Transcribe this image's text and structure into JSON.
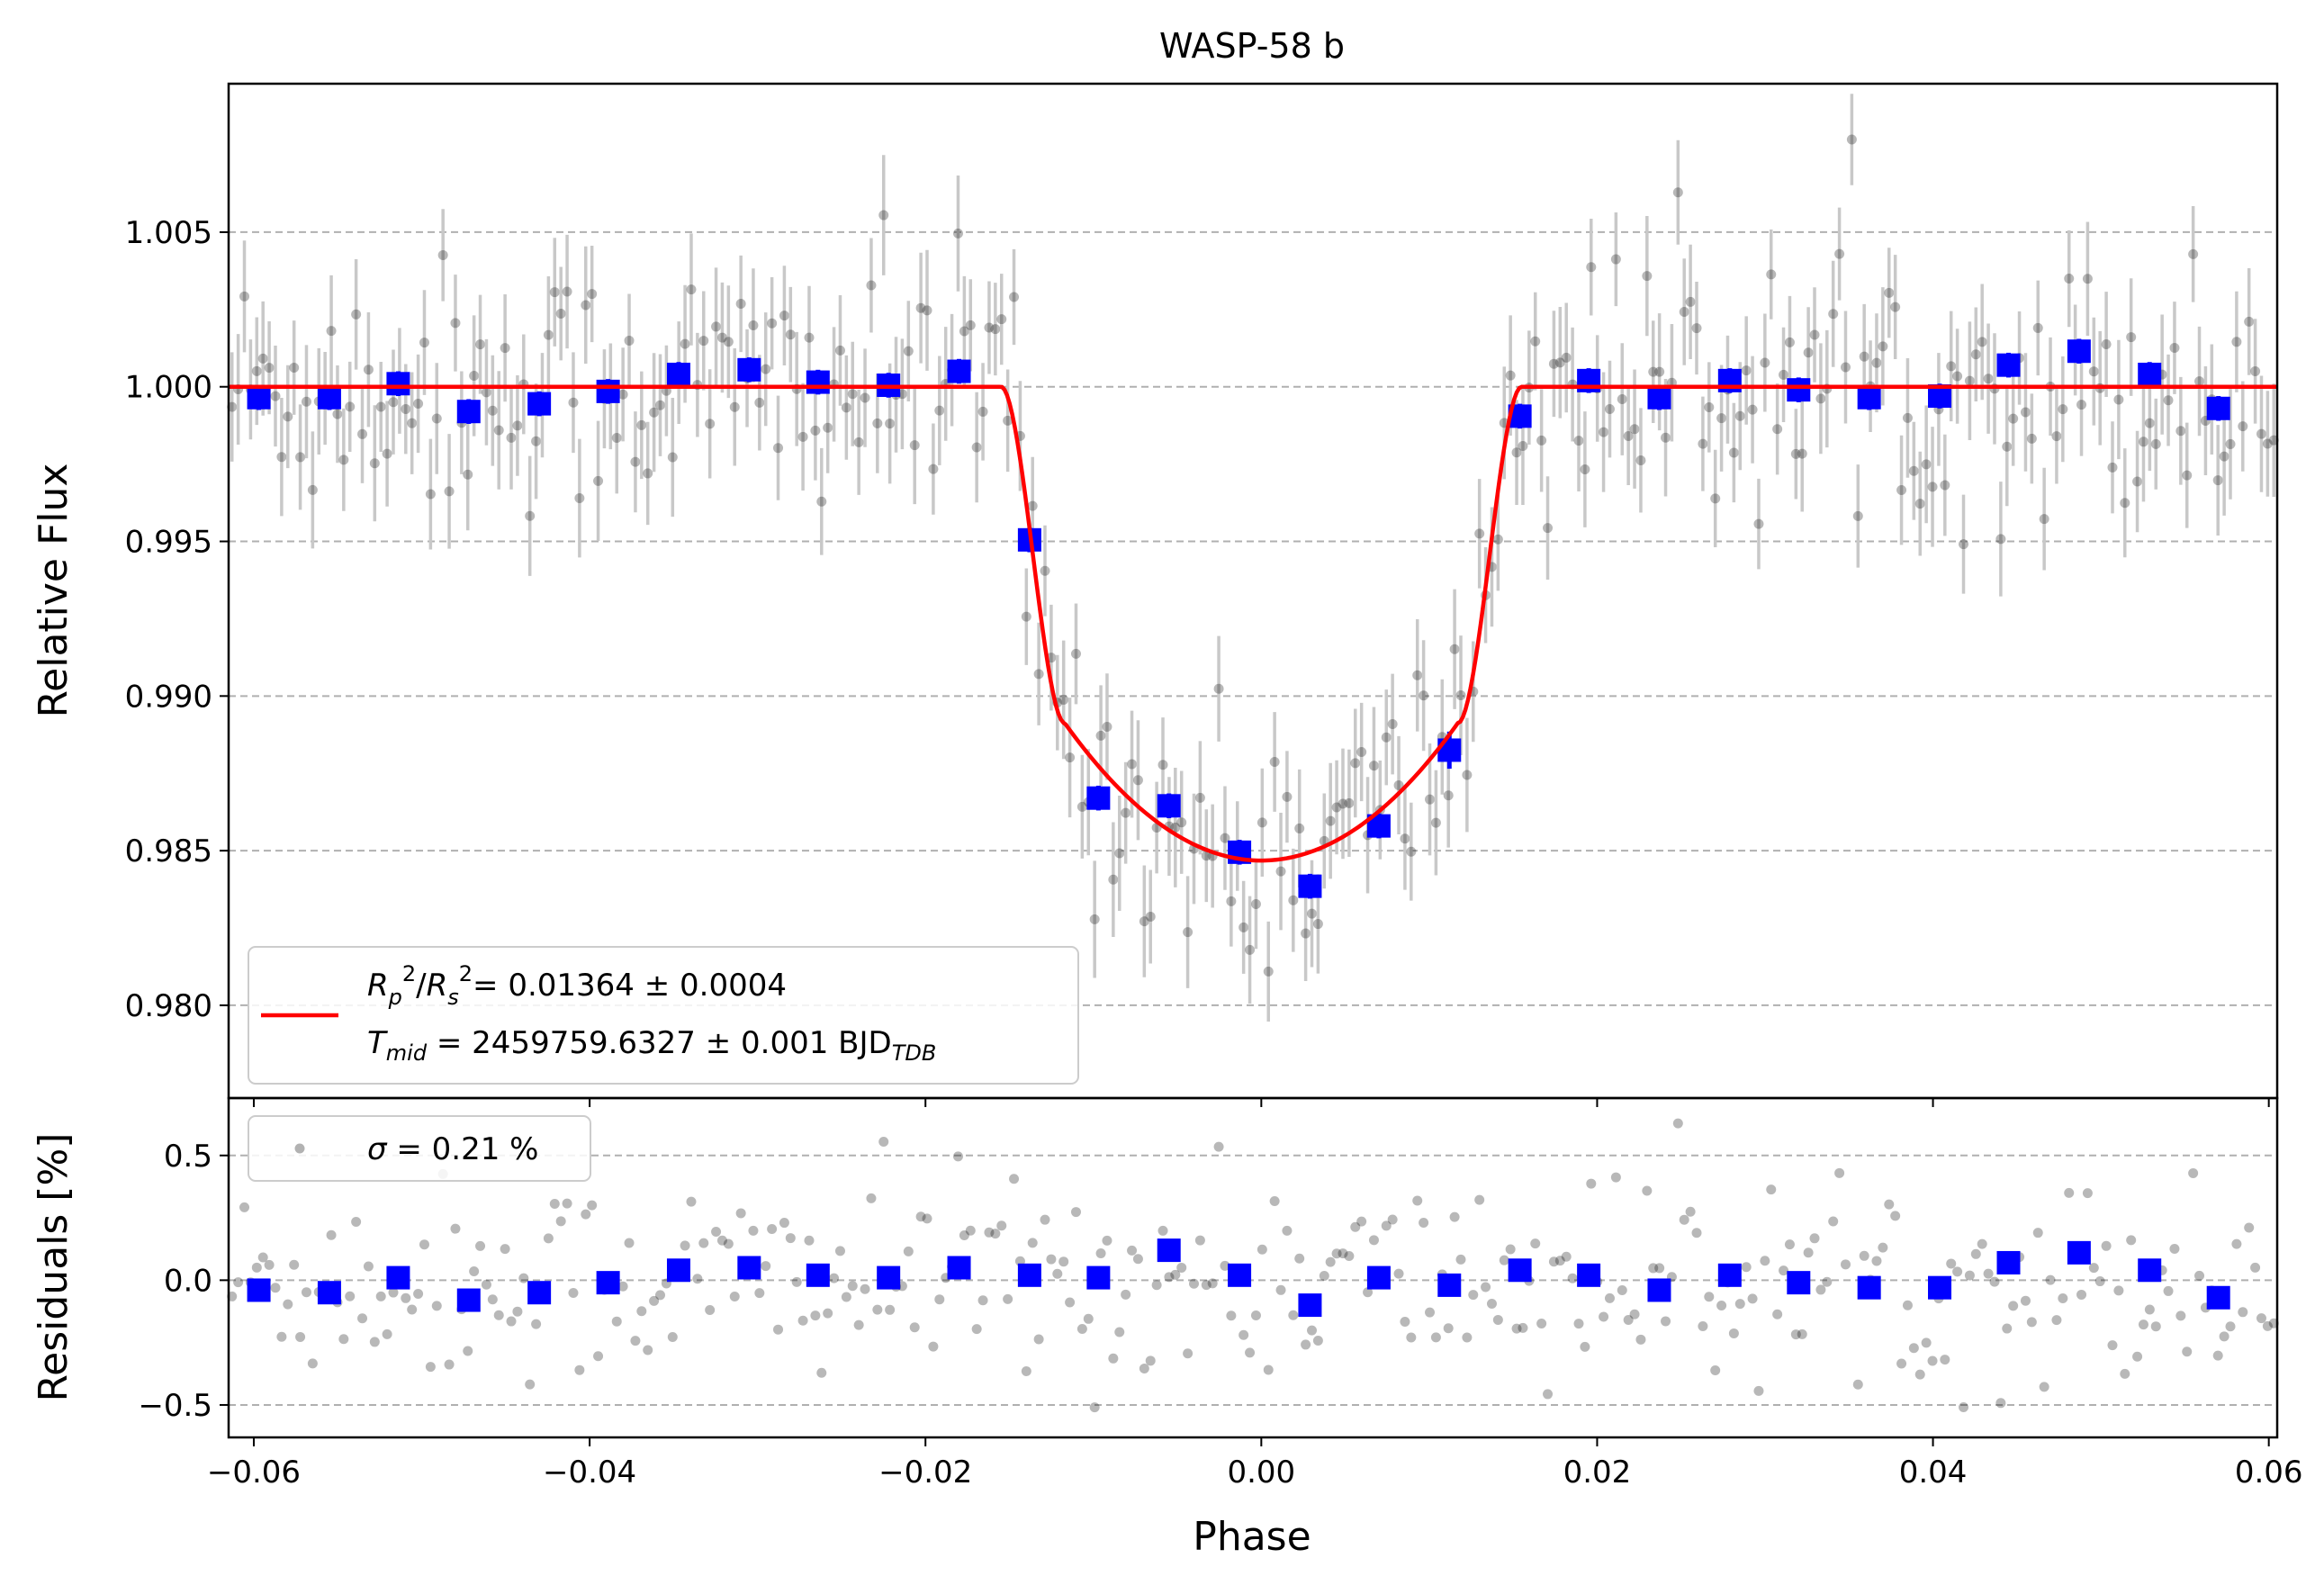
{
  "chart_data": [
    {
      "panel": "top",
      "type": "scatter",
      "title": "WASP-58 b",
      "xlabel": "",
      "ylabel": "Relative Flux",
      "xlim": [
        -0.0615,
        0.0605
      ],
      "ylim": [
        0.977,
        1.0098
      ],
      "xticks": [
        -0.06,
        -0.04,
        -0.02,
        0.0,
        0.02,
        0.04,
        0.06
      ],
      "yticks": [
        0.98,
        0.985,
        0.99,
        0.995,
        1.0,
        1.005
      ],
      "ytick_labels": [
        "0.980",
        "0.985",
        "0.990",
        "0.995",
        "1.000",
        "1.005"
      ],
      "grid": "y-dashed",
      "legend_position": "lower-left",
      "model": {
        "name": "transit model",
        "color": "#ff0000",
        "baseline": 1.0,
        "depth_flux": 0.98468,
        "ingress_start": -0.0155,
        "ingress_end": -0.0117,
        "egress_start": 0.0117,
        "egress_end": 0.0155
      },
      "legend": {
        "rp_rs_label": "R_p²/R_s²",
        "rp_rs_value": "= 0.01364 ± 0.0004",
        "tmid_label": "T_mid",
        "tmid_value": "= 2459759.6327 ± 0.001 BJD",
        "tmid_sub": "TDB"
      },
      "raw_points": {
        "color": "#000000",
        "error_color": "#c8c8c8",
        "point_count": 330,
        "x_start": -0.0613,
        "x_end": 0.0603,
        "typical_error": 0.0017,
        "scatter_sigma": 0.0021
      },
      "binned": {
        "color": "#0000ff",
        "x": [
          -0.0597,
          -0.0555,
          -0.0514,
          -0.0472,
          -0.043,
          -0.0389,
          -0.0347,
          -0.0305,
          -0.0264,
          -0.0222,
          -0.018,
          -0.0138,
          -0.0097,
          -0.0055,
          -0.0013,
          0.0029,
          0.007,
          0.0112,
          0.0154,
          0.0195,
          0.0237,
          0.0279,
          0.032,
          0.0362,
          0.0404,
          0.0445,
          0.0487,
          0.0529,
          0.057
        ],
        "y": [
          0.99965,
          0.99965,
          1.0001,
          0.9992,
          0.99945,
          0.99985,
          1.0004,
          1.00055,
          1.00015,
          1.00005,
          1.0005,
          0.99505,
          0.9867,
          0.98645,
          0.98495,
          0.98385,
          0.9858,
          0.98825,
          0.99905,
          1.0002,
          0.99965,
          1.0002,
          0.9999,
          0.99965,
          0.9997,
          1.0007,
          1.00115,
          1.0004,
          0.9993
        ],
        "err": [
          0.0004,
          0.0004,
          0.0004,
          0.0004,
          0.0004,
          0.0004,
          0.0004,
          0.0004,
          0.0004,
          0.0004,
          0.0004,
          0.0004,
          0.0004,
          0.0004,
          0.0004,
          0.0004,
          0.0004,
          0.0006,
          0.0004,
          0.0004,
          0.0004,
          0.0004,
          0.0004,
          0.0004,
          0.0004,
          0.0004,
          0.0004,
          0.0004,
          0.0004
        ]
      }
    },
    {
      "panel": "bottom",
      "type": "scatter",
      "xlabel": "Phase",
      "ylabel": "Residuals [%]",
      "xlim": [
        -0.0615,
        0.0605
      ],
      "ylim": [
        -0.63,
        0.73
      ],
      "xticks": [
        -0.06,
        -0.04,
        -0.02,
        0.0,
        0.02,
        0.04,
        0.06
      ],
      "xtick_labels": [
        "−0.06",
        "−0.04",
        "−0.02",
        "0.00",
        "0.02",
        "0.04",
        "0.06"
      ],
      "yticks": [
        -0.5,
        0.0,
        0.5
      ],
      "ytick_labels": [
        "−0.5",
        "0.0",
        "0.5"
      ],
      "grid": "y-dashed",
      "legend_position": "top-left",
      "legend": {
        "sigma_label": "σ",
        "sigma_value": "= 0.21 %"
      },
      "binned": {
        "color": "#0000ff",
        "x": [
          -0.0597,
          -0.0555,
          -0.0514,
          -0.0472,
          -0.043,
          -0.0389,
          -0.0347,
          -0.0305,
          -0.0264,
          -0.0222,
          -0.018,
          -0.0138,
          -0.0097,
          -0.0055,
          -0.0013,
          0.0029,
          0.007,
          0.0112,
          0.0154,
          0.0195,
          0.0237,
          0.0279,
          0.032,
          0.0362,
          0.0404,
          0.0445,
          0.0487,
          0.0529,
          0.057
        ],
        "y": [
          -0.04,
          -0.05,
          0.01,
          -0.08,
          -0.05,
          -0.01,
          0.04,
          0.05,
          0.02,
          0.01,
          0.05,
          0.02,
          0.01,
          0.12,
          0.02,
          -0.1,
          0.01,
          -0.02,
          0.04,
          0.02,
          -0.04,
          0.02,
          -0.01,
          -0.03,
          -0.03,
          0.07,
          0.11,
          0.04,
          -0.07
        ]
      }
    }
  ]
}
